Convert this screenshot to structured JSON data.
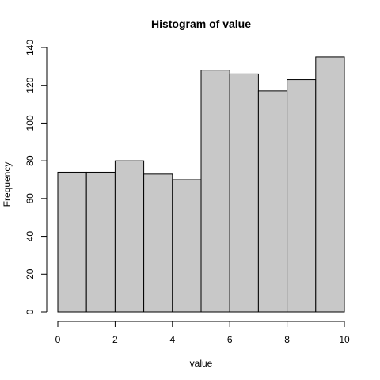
{
  "chart_data": {
    "type": "bar",
    "title": "Histogram of value",
    "xlabel": "value",
    "ylabel": "Frequency",
    "bins": [
      {
        "start": 0,
        "end": 1,
        "count": 74
      },
      {
        "start": 1,
        "end": 2,
        "count": 74
      },
      {
        "start": 2,
        "end": 3,
        "count": 80
      },
      {
        "start": 3,
        "end": 4,
        "count": 73
      },
      {
        "start": 4,
        "end": 5,
        "count": 70
      },
      {
        "start": 5,
        "end": 6,
        "count": 128
      },
      {
        "start": 6,
        "end": 7,
        "count": 126
      },
      {
        "start": 7,
        "end": 8,
        "count": 117
      },
      {
        "start": 8,
        "end": 9,
        "count": 123
      },
      {
        "start": 9,
        "end": 10,
        "count": 135
      }
    ],
    "xlim": [
      0,
      10
    ],
    "ylim": [
      0,
      140
    ],
    "x_ticks": [
      0,
      2,
      4,
      6,
      8,
      10
    ],
    "y_ticks": [
      0,
      20,
      40,
      60,
      80,
      100,
      120,
      140
    ],
    "bar_color": "#c8c8c8",
    "grid": false
  }
}
